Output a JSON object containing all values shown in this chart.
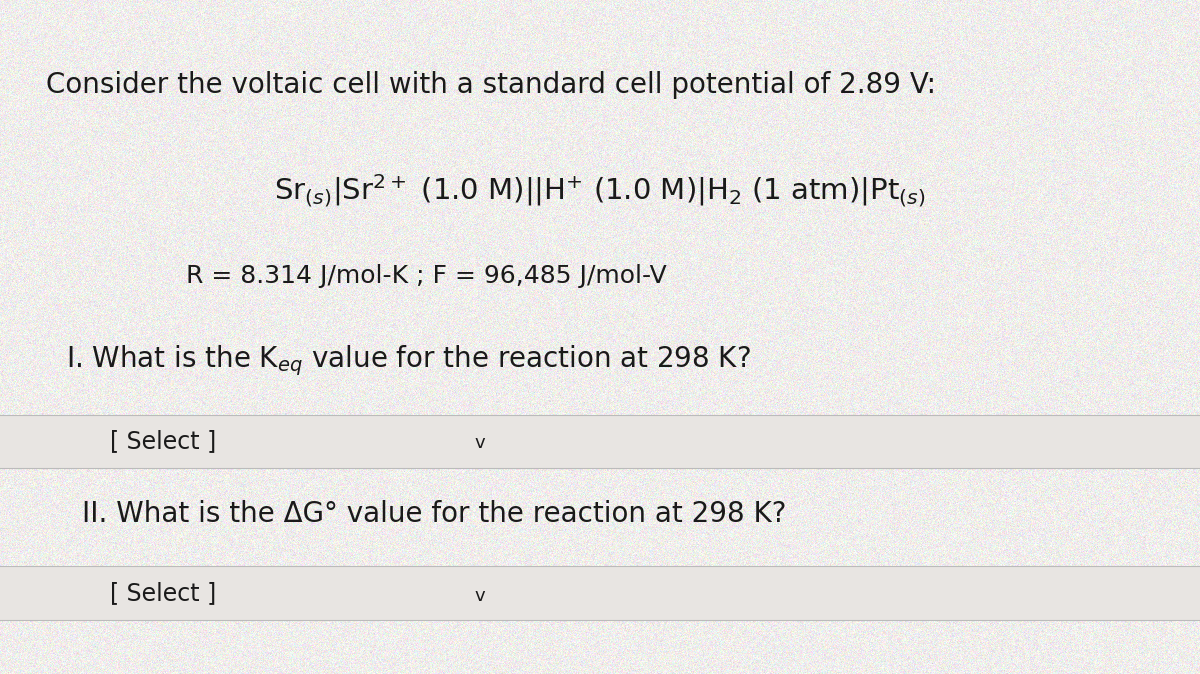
{
  "background_color": "#f0eeec",
  "text_color": "#1a1a1a",
  "title_line": "Consider the voltaic cell with a standard cell potential of 2.89 V:",
  "cell_notation": "Sr$_{(s)}$|Sr$^{2+}$ (1.0 M)||H$^{+}$ (1.0 M)|H$_2$ (1 atm)|Pt$_{(s)}$",
  "constants_line": "R = 8.314 J/mol-K ; F = 96,485 J/mol-V",
  "question1": "I. What is the K$_{eq}$ value for the reaction at 298 K?",
  "select1": "[ Select ]",
  "question2": "II. What is the ΔG° value for the reaction at 298 K?",
  "select2": "[ Select ]",
  "title_fontsize": 20,
  "cell_fontsize": 21,
  "constants_fontsize": 18,
  "question_fontsize": 20,
  "select_fontsize": 17,
  "chevron_fontsize": 13
}
